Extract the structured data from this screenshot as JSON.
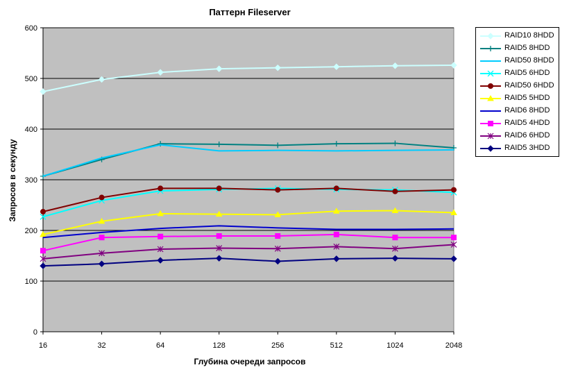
{
  "chart_data": {
    "type": "line",
    "title": "Паттерн Fileserver",
    "xlabel": "Глубина очереди запросов",
    "ylabel": "Запросов в секунду",
    "categories": [
      "16",
      "32",
      "64",
      "128",
      "256",
      "512",
      "1024",
      "2048"
    ],
    "ylim": [
      0,
      600
    ],
    "yticks": [
      0,
      100,
      200,
      300,
      400,
      500,
      600
    ],
    "grid": "horizontal",
    "plot_background": "#c0c0c0",
    "legend_position": "right",
    "series": [
      {
        "name": "RAID10 8HDD",
        "color": "#ccffff",
        "marker": "diamond",
        "values": [
          474,
          498,
          512,
          519,
          521,
          523,
          525,
          526
        ]
      },
      {
        "name": "RAID5 8HDD",
        "color": "#008080",
        "marker": "plus",
        "values": [
          307,
          340,
          371,
          370,
          368,
          371,
          372,
          363
        ]
      },
      {
        "name": "RAID50 8HDD",
        "color": "#00ccff",
        "marker": "none",
        "values": [
          307,
          343,
          369,
          357,
          358,
          357,
          358,
          359
        ]
      },
      {
        "name": "RAID5 6HDD",
        "color": "#00ffff",
        "marker": "x",
        "values": [
          227,
          259,
          278,
          281,
          283,
          281,
          280,
          275
        ]
      },
      {
        "name": "RAID50 6HDD",
        "color": "#800000",
        "marker": "circle",
        "values": [
          237,
          265,
          283,
          283,
          280,
          283,
          277,
          280
        ]
      },
      {
        "name": "RAID5 5HDD",
        "color": "#ffff00",
        "marker": "triangle",
        "values": [
          192,
          218,
          233,
          232,
          231,
          238,
          239,
          235
        ]
      },
      {
        "name": "RAID6 8HDD",
        "color": "#0000cc",
        "marker": "none",
        "values": [
          186,
          196,
          204,
          209,
          205,
          202,
          202,
          203
        ]
      },
      {
        "name": "RAID5 4HDD",
        "color": "#ff00ff",
        "marker": "square",
        "values": [
          160,
          186,
          188,
          189,
          189,
          192,
          186,
          186
        ]
      },
      {
        "name": "RAID6 6HDD",
        "color": "#800080",
        "marker": "star",
        "values": [
          144,
          155,
          163,
          165,
          164,
          168,
          164,
          172
        ]
      },
      {
        "name": "RAID5 3HDD",
        "color": "#000080",
        "marker": "diamond",
        "values": [
          130,
          134,
          141,
          145,
          139,
          144,
          145,
          144
        ]
      }
    ]
  }
}
